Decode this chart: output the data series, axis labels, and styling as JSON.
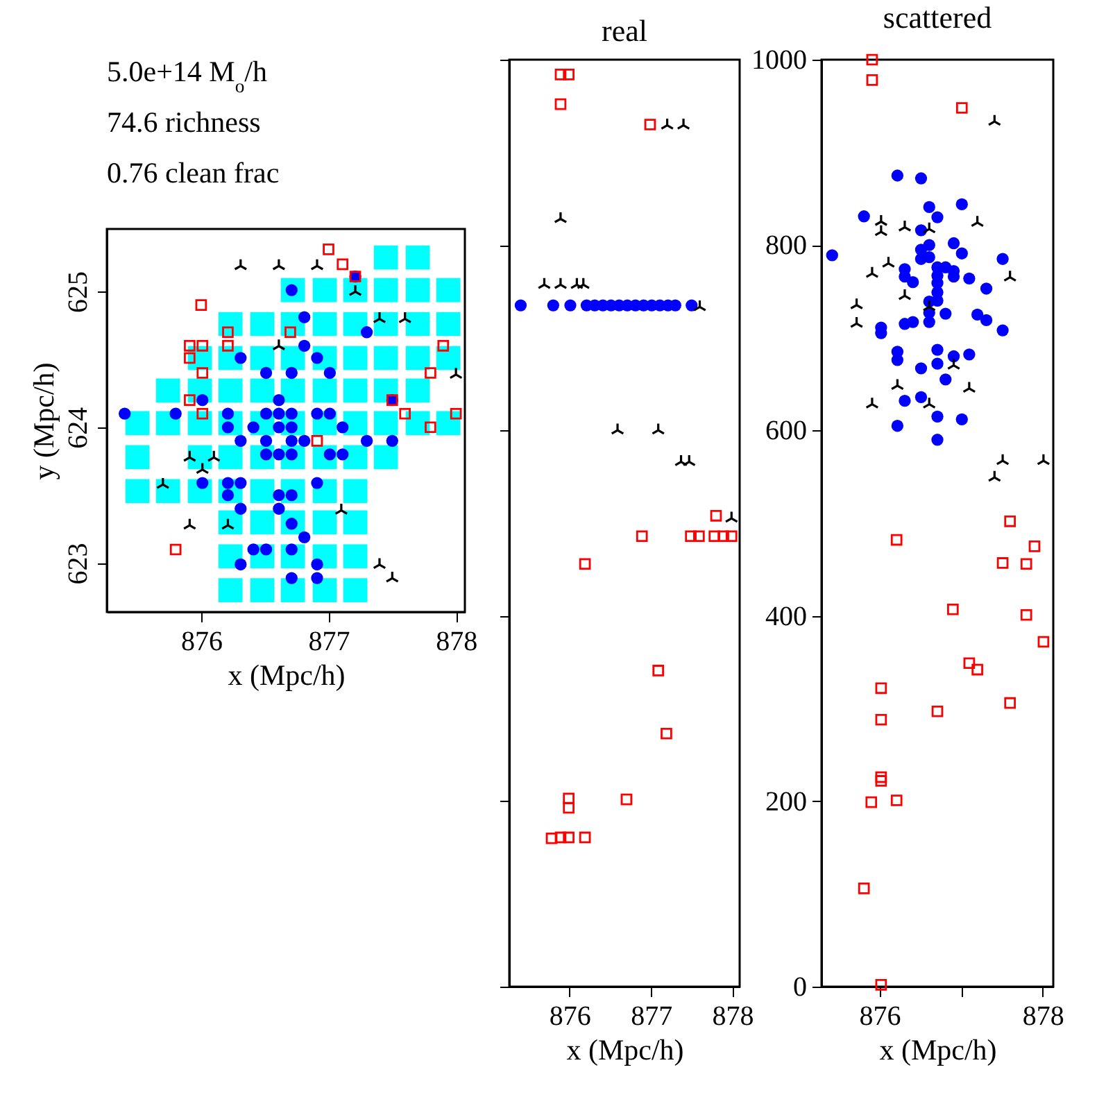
{
  "chart_data": [
    {
      "type": "scatter",
      "xlabel": "x (Mpc/h)",
      "ylabel": "y (Mpc/h)",
      "xlim": [
        875.26,
        878.07
      ],
      "ylim": [
        622.64,
        625.46
      ],
      "xticks": [
        876,
        877,
        878
      ],
      "yticks": [
        623,
        624,
        625
      ],
      "annotations": [
        "5.0e+14 M$_{o}$/h",
        "74.6  richness",
        "0.76  clean frac"
      ],
      "series": [
        {
          "color": "#00ffff",
          "marker": "square",
          "x": [
            877.45,
            877.7,
            876.72,
            876.97,
            877.21,
            877.45,
            877.7,
            877.94,
            876.23,
            876.48,
            876.72,
            876.97,
            877.21,
            877.45,
            877.7,
            877.94,
            875.99,
            876.23,
            876.48,
            876.72,
            876.97,
            877.21,
            877.45,
            877.7,
            877.94,
            875.74,
            875.99,
            876.23,
            876.48,
            876.72,
            876.97,
            877.21,
            877.45,
            877.7,
            875.5,
            875.74,
            875.99,
            876.23,
            876.48,
            876.72,
            876.97,
            877.21,
            877.45,
            877.7,
            877.94,
            875.5,
            875.99,
            876.23,
            876.48,
            876.72,
            876.97,
            877.21,
            877.45,
            875.5,
            875.74,
            875.99,
            876.23,
            876.48,
            876.72,
            876.97,
            877.21,
            876.23,
            876.48,
            876.72,
            876.97,
            877.21,
            876.23,
            876.48,
            876.72,
            876.97,
            877.21,
            876.23,
            876.48,
            876.72,
            876.97,
            877.21
          ],
          "values": [
            625.25,
            625.25,
            625.01,
            625.01,
            625.01,
            625.01,
            625.01,
            625.01,
            624.76,
            624.76,
            624.76,
            624.76,
            624.76,
            624.76,
            624.76,
            624.76,
            624.51,
            624.51,
            624.51,
            624.51,
            624.51,
            624.51,
            624.51,
            624.51,
            624.51,
            624.27,
            624.27,
            624.27,
            624.27,
            624.27,
            624.27,
            624.27,
            624.27,
            624.27,
            624.03,
            624.03,
            624.03,
            624.03,
            624.03,
            624.03,
            624.03,
            624.03,
            624.03,
            624.03,
            624.03,
            623.78,
            623.78,
            623.78,
            623.78,
            623.78,
            623.78,
            623.78,
            623.78,
            623.53,
            623.53,
            623.53,
            623.53,
            623.53,
            623.53,
            623.53,
            623.53,
            623.3,
            623.3,
            623.3,
            623.3,
            623.3,
            623.05,
            623.05,
            623.05,
            623.05,
            623.05,
            622.8,
            622.8,
            622.8,
            622.8,
            622.8
          ]
        },
        {
          "color": "#0000ff",
          "marker": "circle",
          "x": [
            876.71,
            876.81,
            877.3,
            876.81,
            876.31,
            876.91,
            876.51,
            876.71,
            877.01,
            876.61,
            876.01,
            877.5,
            877.21,
            875.4,
            875.8,
            876.21,
            876.51,
            876.61,
            876.71,
            876.91,
            877.01,
            876.21,
            876.41,
            876.61,
            876.71,
            877.11,
            876.31,
            876.51,
            876.71,
            876.81,
            877.3,
            877.5,
            876.51,
            876.61,
            876.71,
            877.01,
            877.11,
            876.01,
            876.21,
            876.31,
            876.91,
            876.21,
            876.61,
            876.71,
            876.31,
            876.61,
            876.71,
            876.81,
            876.41,
            876.51,
            876.71,
            876.31,
            876.91,
            876.71,
            876.91
          ],
          "values": [
            625.01,
            624.81,
            624.7,
            624.6,
            624.51,
            624.51,
            624.4,
            624.4,
            624.4,
            624.2,
            624.2,
            624.2,
            625.11,
            624.1,
            624.1,
            624.1,
            624.1,
            624.1,
            624.1,
            624.1,
            624.1,
            624.0,
            624.0,
            624.0,
            624.0,
            624.0,
            623.9,
            623.9,
            623.9,
            623.9,
            623.9,
            623.9,
            623.8,
            623.8,
            623.8,
            623.8,
            623.8,
            623.59,
            623.59,
            623.59,
            623.59,
            623.5,
            623.5,
            623.5,
            623.4,
            623.4,
            623.29,
            623.19,
            623.1,
            623.1,
            623.1,
            622.99,
            622.99,
            622.89,
            622.89
          ]
        },
        {
          "color": "#ff0000",
          "marker": "square",
          "x": [
            877.0,
            877.11,
            877.21,
            876.0,
            876.21,
            876.7,
            875.91,
            876.01,
            876.21,
            877.9,
            875.91,
            876.01,
            877.8,
            875.91,
            876.01,
            877.5,
            877.6,
            878.0,
            877.8,
            876.91,
            875.8
          ],
          "values": [
            625.31,
            625.2,
            625.11,
            624.9,
            624.7,
            624.7,
            624.6,
            624.6,
            624.6,
            624.6,
            624.51,
            624.4,
            624.4,
            624.2,
            624.1,
            624.2,
            624.1,
            624.1,
            624.0,
            623.9,
            623.1
          ]
        },
        {
          "color": "#000000",
          "marker": "cross",
          "x": [
            876.31,
            876.61,
            876.91,
            877.21,
            877.4,
            877.6,
            876.61,
            878.0,
            875.91,
            876.1,
            876.01,
            875.7,
            877.1,
            875.91,
            876.21,
            877.4,
            877.5
          ],
          "values": [
            625.2,
            625.2,
            625.2,
            625.01,
            624.81,
            624.81,
            624.61,
            624.4,
            623.79,
            623.79,
            623.7,
            623.59,
            623.4,
            623.29,
            623.29,
            623.0,
            622.9
          ]
        }
      ]
    },
    {
      "type": "scatter",
      "title": "real",
      "xlabel": "x (Mpc/h)",
      "xlim": [
        875.26,
        878.09
      ],
      "ylim": [
        0,
        1000
      ],
      "xticks": [
        876,
        877,
        878
      ],
      "yticks": [
        0,
        200,
        400,
        600,
        800,
        1000
      ],
      "tick_labels": "x",
      "series": [
        {
          "color": "#0000ff",
          "marker": "circle",
          "x": [
            875.4,
            875.8,
            876.01,
            876.21,
            876.31,
            876.41,
            876.51,
            876.61,
            876.71,
            876.81,
            876.91,
            877.01,
            877.11,
            877.21,
            877.3,
            877.5
          ],
          "values": [
            735,
            735,
            735,
            735,
            735,
            735,
            735,
            735,
            735,
            735,
            735,
            735,
            735,
            735,
            735,
            735
          ]
        },
        {
          "color": "#ff0000",
          "marker": "square",
          "x": [
            875.89,
            875.99,
            875.89,
            876.99,
            877.8,
            876.89,
            877.49,
            877.59,
            877.78,
            877.89,
            877.99,
            876.19,
            877.09,
            877.19,
            875.99,
            875.99,
            876.7,
            875.78,
            875.89,
            875.99,
            876.19
          ],
          "values": [
            984,
            984,
            952,
            930,
            508,
            486,
            486,
            486,
            486,
            486,
            486,
            456,
            341,
            273,
            203,
            193,
            202,
            160,
            161,
            161,
            161
          ]
        },
        {
          "color": "#000000",
          "marker": "cross",
          "x": [
            875.89,
            875.69,
            875.89,
            876.09,
            876.17,
            877.6,
            877.2,
            877.4,
            876.59,
            877.09,
            877.37,
            877.47,
            877.99
          ],
          "values": [
            830,
            759,
            759,
            759,
            759,
            735,
            931,
            931,
            602,
            602,
            568,
            568,
            507
          ]
        }
      ]
    },
    {
      "type": "scatter",
      "title": "scattered",
      "xlabel": "x (Mpc/h)",
      "xlim": [
        875.29,
        878.13
      ],
      "ylim": [
        0,
        1000
      ],
      "xticks": [
        876,
        {
          "value": 877,
          "label": null
        },
        878
      ],
      "yticks": [
        0,
        200,
        400,
        600,
        800,
        1000
      ],
      "series": [
        {
          "color": "#0000ff",
          "marker": "circle",
          "x": [
            875.42,
            875.81,
            876.22,
            876.51,
            876.61,
            876.71,
            877.01,
            876.51,
            876.61,
            876.91,
            876.51,
            876.51,
            876.61,
            877.01,
            877.51,
            876.71,
            876.81,
            876.91,
            876.71,
            876.91,
            876.31,
            876.31,
            876.41,
            876.71,
            876.71,
            877.1,
            877.31,
            876.71,
            876.61,
            876.61,
            876.81,
            877.2,
            877.31,
            876.41,
            876.31,
            876.61,
            876.02,
            876.02,
            877.51,
            876.22,
            876.22,
            876.71,
            876.91,
            877.1,
            876.71,
            876.51,
            876.81,
            876.31,
            876.51,
            876.22,
            876.71,
            877.01,
            876.71
          ],
          "values": [
            789,
            831,
            875,
            872,
            841,
            830,
            844,
            816,
            800,
            802,
            795,
            785,
            787,
            791,
            785,
            776,
            776,
            772,
            767,
            766,
            774,
            766,
            760,
            759,
            749,
            764,
            753,
            740,
            739,
            727,
            726,
            725,
            719,
            717,
            715,
            717,
            711,
            705,
            708,
            685,
            676,
            687,
            680,
            682,
            672,
            667,
            655,
            632,
            636,
            605,
            615,
            612,
            590
          ]
        },
        {
          "color": "#ff0000",
          "marker": "square",
          "x": [
            875.91,
            875.91,
            877.01,
            877.6,
            876.21,
            877.9,
            877.51,
            877.8,
            876.9,
            877.8,
            878.01,
            877.1,
            877.2,
            876.02,
            877.6,
            876.02,
            876.71,
            876.02,
            876.02,
            875.9,
            876.21,
            875.81,
            876.02
          ],
          "values": [
            1000,
            978,
            948,
            502,
            482,
            475,
            457,
            456,
            407,
            401,
            372,
            349,
            342,
            322,
            306,
            288,
            297,
            226,
            222,
            199,
            201,
            106,
            2
          ]
        },
        {
          "color": "#000000",
          "marker": "cross",
          "x": [
            877.41,
            876.02,
            876.02,
            876.31,
            876.61,
            877.2,
            876.11,
            875.91,
            877.6,
            876.31,
            875.72,
            875.72,
            876.61,
            876.91,
            876.22,
            877.1,
            875.91,
            876.61,
            877.51,
            878.01,
            877.41
          ],
          "values": [
            935,
            827,
            816,
            821,
            819,
            826,
            782,
            771,
            767,
            747,
            737,
            717,
            735,
            672,
            650,
            647,
            630,
            630,
            569,
            569,
            551
          ]
        }
      ]
    }
  ]
}
